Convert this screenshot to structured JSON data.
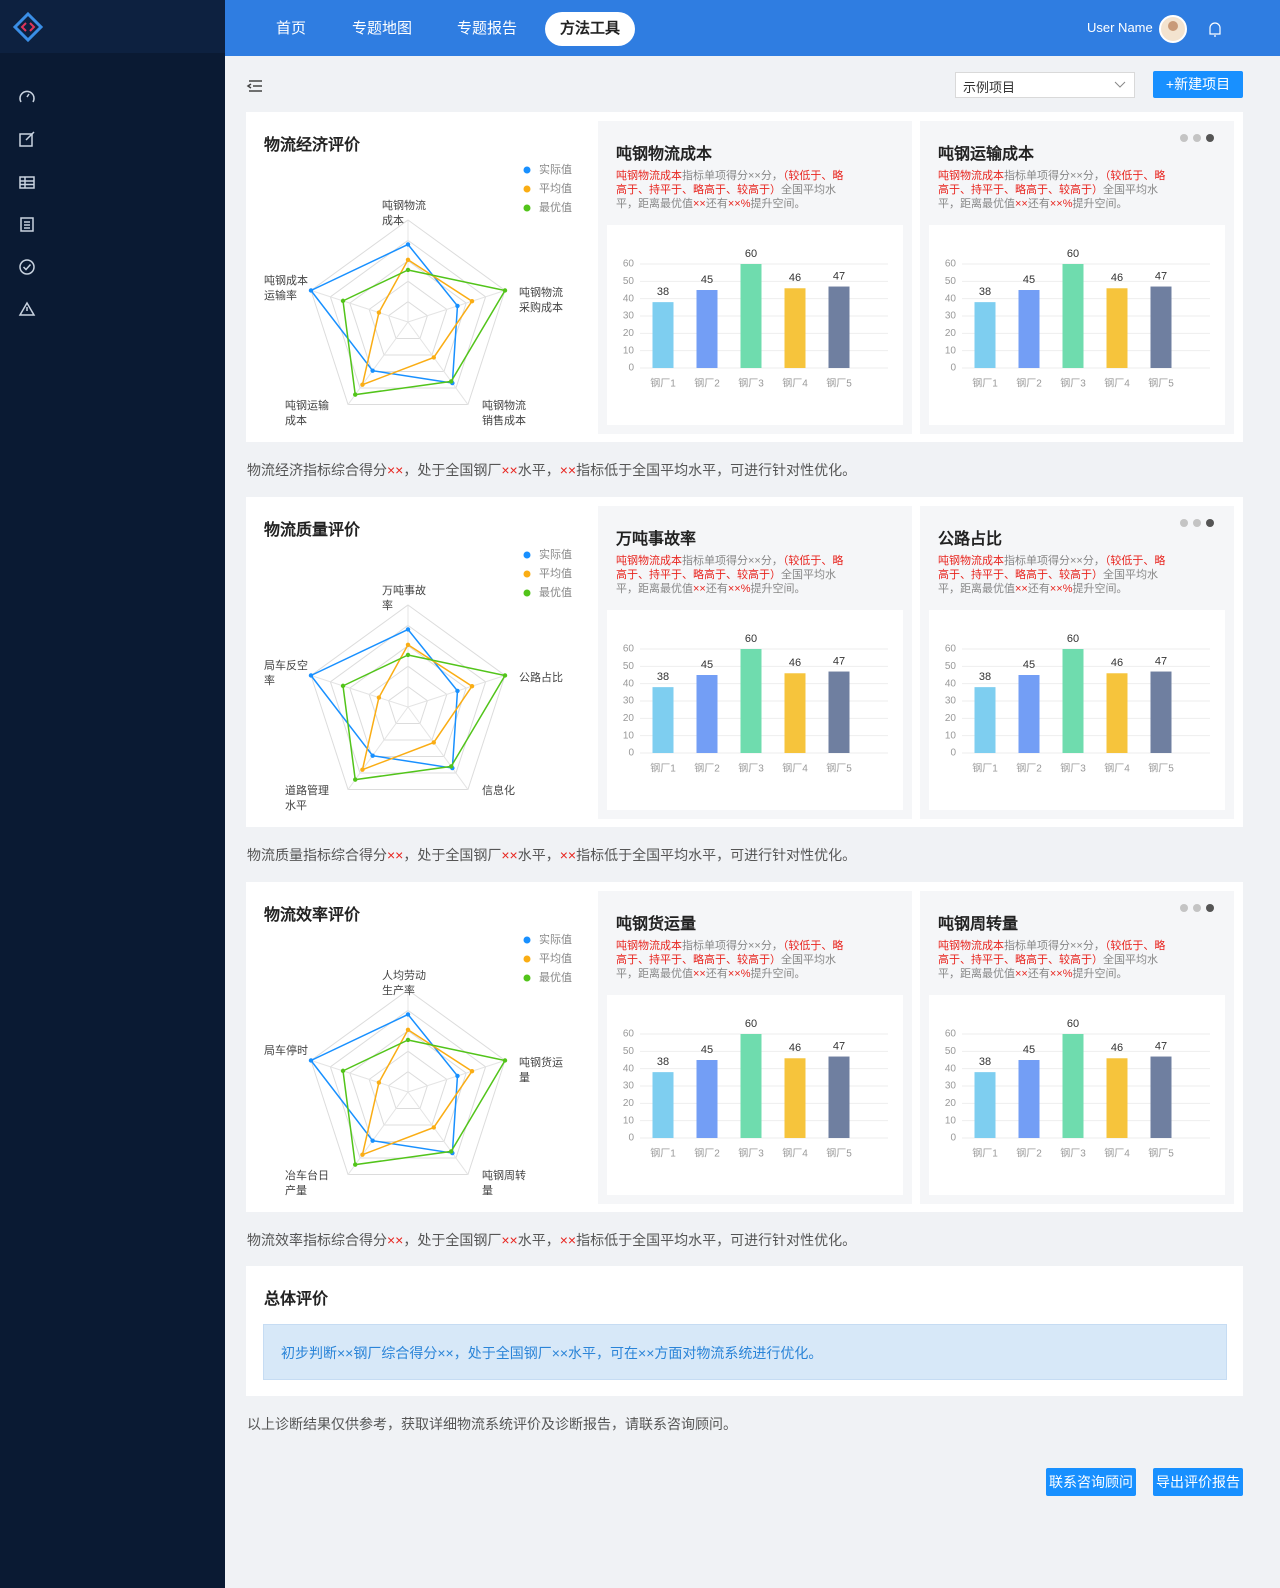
{
  "nav": {
    "items": [
      "首页",
      "专题地图",
      "专题报告",
      "方法工具"
    ],
    "active": 3,
    "user": "User Name"
  },
  "toolbar": {
    "select": "示例项目",
    "new_button": "+新建项目"
  },
  "sections": [
    {
      "title": "物流经济评价",
      "radar": {
        "type": "radar",
        "rlim": [
          0,
          100
        ],
        "indicators": [
          [
            "吨钢物流",
            "成本"
          ],
          [
            "吨钢物流",
            "采购成本"
          ],
          [
            "吨钢物流",
            "销售成本"
          ],
          [
            "吨钢运输",
            "成本"
          ],
          [
            "吨钢成本",
            "运输率"
          ]
        ],
        "series": [
          {
            "name": "实际值",
            "color": "#1890ff",
            "values": [
              76,
              51,
              74,
              59,
              100
            ]
          },
          {
            "name": "平均值",
            "color": "#faad14",
            "values": [
              61,
              66,
              43,
              76,
              30
            ]
          },
          {
            "name": "最优值",
            "color": "#52c41a",
            "values": [
              51,
              100,
              72,
              88,
              67
            ]
          }
        ]
      },
      "cards": [
        {
          "title": "吨钢物流成本",
          "description": [
            "吨钢物流成本",
            "指标单项得分××分，",
            "（较低于、略高于、持平于、略高于、较高于）",
            "全国平均水平，距离最优值",
            "××",
            "还有",
            "××%",
            "提升空间。"
          ],
          "chart": {
            "type": "bar",
            "categories": [
              "钢厂1",
              "钢厂2",
              "钢厂3",
              "钢厂4",
              "钢厂5"
            ],
            "values": [
              38,
              45,
              60,
              46,
              47
            ],
            "colors": [
              "#7ecef0",
              "#739ef5",
              "#6fdcae",
              "#f6c43c",
              "#6f7fa0"
            ],
            "ylim": [
              0,
              60
            ],
            "yticks": [
              0,
              10,
              20,
              30,
              40,
              50,
              60
            ],
            "grid": true
          }
        },
        {
          "title": "吨钢运输成本",
          "description": [
            "吨钢物流成本",
            "指标单项得分××分，",
            "（较低于、略高于、持平于、略高于、较高于）",
            "全国平均水平，距离最优值",
            "××",
            "还有",
            "××%",
            "提升空间。"
          ],
          "chart": {
            "type": "bar",
            "categories": [
              "钢厂1",
              "钢厂2",
              "钢厂3",
              "钢厂4",
              "钢厂5"
            ],
            "values": [
              38,
              45,
              60,
              46,
              47
            ],
            "colors": [
              "#7ecef0",
              "#739ef5",
              "#6fdcae",
              "#f6c43c",
              "#6f7fa0"
            ],
            "ylim": [
              0,
              60
            ],
            "yticks": [
              0,
              10,
              20,
              30,
              40,
              50,
              60
            ],
            "grid": true
          }
        }
      ],
      "summary": [
        "物流经济指标综合得分",
        "××",
        "，处于全国钢厂",
        "××",
        "水平，",
        "××",
        "指标低于全国平均水平，可进行针对性优化。"
      ]
    },
    {
      "title": "物流质量评价",
      "radar": {
        "type": "radar",
        "rlim": [
          0,
          100
        ],
        "indicators": [
          [
            "万吨事故",
            "率"
          ],
          [
            "公路占比"
          ],
          [
            "信息化"
          ],
          [
            "道路管理",
            "水平"
          ],
          [
            "局车反空",
            "率"
          ]
        ],
        "series": [
          {
            "name": "实际值",
            "color": "#1890ff",
            "values": [
              76,
              51,
              74,
              59,
              100
            ]
          },
          {
            "name": "平均值",
            "color": "#faad14",
            "values": [
              61,
              66,
              43,
              76,
              30
            ]
          },
          {
            "name": "最优值",
            "color": "#52c41a",
            "values": [
              51,
              100,
              72,
              88,
              67
            ]
          }
        ]
      },
      "cards": [
        {
          "title": "万吨事故率",
          "description": [
            "吨钢物流成本",
            "指标单项得分××分，",
            "（较低于、略高于、持平于、略高于、较高于）",
            "全国平均水平，距离最优值",
            "××",
            "还有",
            "××%",
            "提升空间。"
          ],
          "chart": {
            "type": "bar",
            "categories": [
              "钢厂1",
              "钢厂2",
              "钢厂3",
              "钢厂4",
              "钢厂5"
            ],
            "values": [
              38,
              45,
              60,
              46,
              47
            ],
            "colors": [
              "#7ecef0",
              "#739ef5",
              "#6fdcae",
              "#f6c43c",
              "#6f7fa0"
            ],
            "ylim": [
              0,
              60
            ],
            "yticks": [
              0,
              10,
              20,
              30,
              40,
              50,
              60
            ],
            "grid": true
          }
        },
        {
          "title": "公路占比",
          "description": [
            "吨钢物流成本",
            "指标单项得分××分，",
            "（较低于、略高于、持平于、略高于、较高于）",
            "全国平均水平，距离最优值",
            "××",
            "还有",
            "××%",
            "提升空间。"
          ],
          "chart": {
            "type": "bar",
            "categories": [
              "钢厂1",
              "钢厂2",
              "钢厂3",
              "钢厂4",
              "钢厂5"
            ],
            "values": [
              38,
              45,
              60,
              46,
              47
            ],
            "colors": [
              "#7ecef0",
              "#739ef5",
              "#6fdcae",
              "#f6c43c",
              "#6f7fa0"
            ],
            "ylim": [
              0,
              60
            ],
            "yticks": [
              0,
              10,
              20,
              30,
              40,
              50,
              60
            ],
            "grid": true
          }
        }
      ],
      "summary": [
        "物流质量指标综合得分",
        "××",
        "，处于全国钢厂",
        "××",
        "水平，",
        "××",
        "指标低于全国平均水平，可进行针对性优化。"
      ]
    },
    {
      "title": "物流效率评价",
      "radar": {
        "type": "radar",
        "rlim": [
          0,
          100
        ],
        "indicators": [
          [
            "人均劳动",
            "生产率"
          ],
          [
            "吨钢货运",
            "量"
          ],
          [
            "吨钢周转",
            "量"
          ],
          [
            "冶车台日",
            "产量"
          ],
          [
            "局车停时"
          ]
        ],
        "series": [
          {
            "name": "实际值",
            "color": "#1890ff",
            "values": [
              76,
              51,
              74,
              59,
              100
            ]
          },
          {
            "name": "平均值",
            "color": "#faad14",
            "values": [
              61,
              66,
              43,
              76,
              30
            ]
          },
          {
            "name": "最优值",
            "color": "#52c41a",
            "values": [
              51,
              100,
              72,
              88,
              67
            ]
          }
        ]
      },
      "cards": [
        {
          "title": "吨钢货运量",
          "description": [
            "吨钢物流成本",
            "指标单项得分××分，",
            "（较低于、略高于、持平于、略高于、较高于）",
            "全国平均水平，距离最优值",
            "××",
            "还有",
            "××%",
            "提升空间。"
          ],
          "chart": {
            "type": "bar",
            "categories": [
              "钢厂1",
              "钢厂2",
              "钢厂3",
              "钢厂4",
              "钢厂5"
            ],
            "values": [
              38,
              45,
              60,
              46,
              47
            ],
            "colors": [
              "#7ecef0",
              "#739ef5",
              "#6fdcae",
              "#f6c43c",
              "#6f7fa0"
            ],
            "ylim": [
              0,
              60
            ],
            "yticks": [
              0,
              10,
              20,
              30,
              40,
              50,
              60
            ],
            "grid": true
          }
        },
        {
          "title": "吨钢周转量",
          "description": [
            "吨钢物流成本",
            "指标单项得分××分，",
            "（较低于、略高于、持平于、略高于、较高于）",
            "全国平均水平，距离最优值",
            "××",
            "还有",
            "××%",
            "提升空间。"
          ],
          "chart": {
            "type": "bar",
            "categories": [
              "钢厂1",
              "钢厂2",
              "钢厂3",
              "钢厂4",
              "钢厂5"
            ],
            "values": [
              38,
              45,
              60,
              46,
              47
            ],
            "colors": [
              "#7ecef0",
              "#739ef5",
              "#6fdcae",
              "#f6c43c",
              "#6f7fa0"
            ],
            "ylim": [
              0,
              60
            ],
            "yticks": [
              0,
              10,
              20,
              30,
              40,
              50,
              60
            ],
            "grid": true
          }
        }
      ],
      "summary": [
        "物流效率指标综合得分",
        "××",
        "，处于全国钢厂",
        "××",
        "水平，",
        "××",
        "指标低于全国平均水平，可进行针对性优化。"
      ]
    }
  ],
  "overall": {
    "title": "总体评价",
    "message": "初步判断××钢厂综合得分××，处于全国钢厂××水平，可在××方面对物流系统进行优化。"
  },
  "footer_note": "以上诊断结果仅供参考，获取详细物流系统评价及诊断报告，请联系咨询顾问。",
  "buttons": [
    "联系咨询顾问",
    "导出评价报告"
  ]
}
